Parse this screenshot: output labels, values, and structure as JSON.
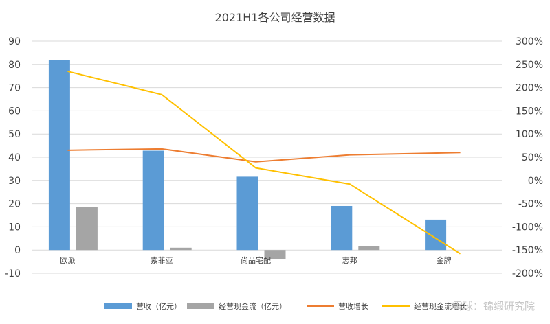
{
  "chart_data": {
    "type": "bar",
    "title": "2021H1各公司经营数据",
    "categories": [
      "欧派",
      "索菲亚",
      "尚品宅配",
      "志邦",
      "金牌"
    ],
    "y_left": {
      "range": [
        -10,
        90
      ],
      "step": 10,
      "ticks": [
        "-10",
        "0",
        "10",
        "20",
        "30",
        "40",
        "50",
        "60",
        "70",
        "80",
        "90"
      ]
    },
    "y_right": {
      "range": [
        -200,
        300
      ],
      "step": 50,
      "unit": "%",
      "ticks": [
        "-200%",
        "-150%",
        "-100%",
        "-50%",
        "0%",
        "50%",
        "100%",
        "150%",
        "200%",
        "250%",
        "300%"
      ]
    },
    "series": [
      {
        "name": "营收（亿元）",
        "kind": "bar",
        "axis": "left",
        "color": "#5b9bd5",
        "values": [
          81.8,
          42.8,
          31.6,
          19.0,
          13.1
        ]
      },
      {
        "name": "经营现金流（亿元）",
        "kind": "bar",
        "axis": "left",
        "color": "#a5a5a5",
        "values": [
          18.6,
          1.0,
          -4.0,
          1.8,
          null
        ]
      },
      {
        "name": "营收增长",
        "kind": "line",
        "axis": "right",
        "color": "#ed7d31",
        "values": [
          65,
          68,
          40,
          55,
          60
        ]
      },
      {
        "name": "经营现金流增长",
        "kind": "line",
        "axis": "right",
        "color": "#ffc000",
        "values": [
          235,
          185,
          27,
          -8,
          -158
        ]
      }
    ],
    "grid": true,
    "legend": "bottom"
  },
  "watermark": "雪球：锦缎研究院"
}
